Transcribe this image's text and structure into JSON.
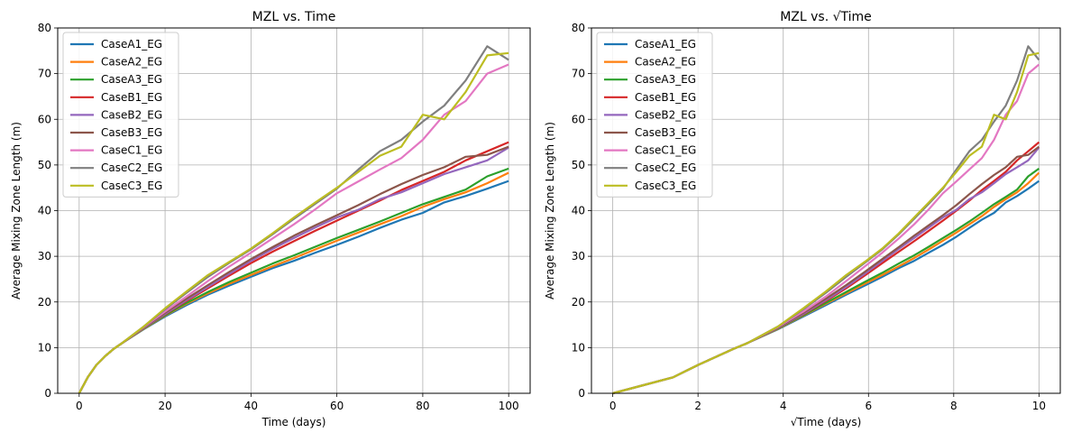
{
  "chart_data": [
    {
      "type": "line",
      "title": "MZL vs. Time",
      "xlabel": "Time (days)",
      "ylabel": "Average Mixing Zone Length (m)",
      "xlim": [
        -5,
        105
      ],
      "ylim": [
        0,
        80
      ],
      "xticks": [
        0,
        20,
        40,
        60,
        80,
        100
      ],
      "yticks": [
        0,
        10,
        20,
        30,
        40,
        50,
        60,
        70,
        80
      ],
      "grid": true,
      "legend": "upper-left",
      "x": [
        0,
        2,
        4,
        6,
        8,
        10,
        15,
        20,
        25,
        30,
        35,
        40,
        45,
        50,
        55,
        60,
        65,
        70,
        75,
        80,
        85,
        90,
        95,
        100
      ],
      "series": [
        {
          "name": "CaseA1_EG",
          "color": "#1f77b4",
          "values": [
            0,
            3.5,
            6.2,
            8.1,
            9.7,
            11.0,
            14.0,
            16.8,
            19.3,
            21.6,
            23.6,
            25.5,
            27.4,
            29.0,
            30.8,
            32.5,
            34.3,
            36.2,
            38.0,
            39.5,
            41.8,
            43.2,
            44.8,
            46.5
          ]
        },
        {
          "name": "CaseA2_EG",
          "color": "#ff7f0e",
          "values": [
            0,
            3.5,
            6.2,
            8.1,
            9.7,
            11.0,
            14.1,
            17.0,
            19.6,
            21.9,
            24.0,
            25.9,
            27.8,
            29.6,
            31.5,
            33.4,
            35.2,
            37.0,
            38.8,
            40.8,
            42.5,
            44.0,
            46.0,
            48.3
          ]
        },
        {
          "name": "CaseA3_EG",
          "color": "#2ca02c",
          "values": [
            0,
            3.5,
            6.2,
            8.1,
            9.7,
            11.0,
            14.2,
            17.1,
            19.8,
            22.2,
            24.4,
            26.4,
            28.4,
            30.2,
            32.1,
            34.0,
            35.8,
            37.6,
            39.5,
            41.4,
            43.0,
            44.6,
            47.5,
            49.2
          ]
        },
        {
          "name": "CaseB1_EG",
          "color": "#d62728",
          "values": [
            0,
            3.5,
            6.2,
            8.1,
            9.7,
            11.0,
            14.3,
            17.3,
            20.2,
            23.0,
            25.8,
            28.5,
            31.0,
            33.3,
            35.6,
            37.8,
            40.0,
            42.2,
            44.5,
            46.5,
            48.5,
            51.0,
            53.0,
            55.0
          ]
        },
        {
          "name": "CaseB2_EG",
          "color": "#9467bd",
          "values": [
            0,
            3.5,
            6.2,
            8.1,
            9.7,
            11.0,
            14.3,
            17.4,
            20.4,
            23.3,
            26.2,
            29.0,
            31.6,
            34.0,
            36.3,
            38.5,
            40.2,
            42.5,
            44.0,
            46.0,
            48.0,
            49.5,
            51.0,
            53.8
          ]
        },
        {
          "name": "CaseB3_EG",
          "color": "#8c564b",
          "values": [
            0,
            3.5,
            6.2,
            8.1,
            9.7,
            11.0,
            14.4,
            17.6,
            20.7,
            23.7,
            26.6,
            29.4,
            32.0,
            34.5,
            36.8,
            39.0,
            41.2,
            43.6,
            45.8,
            47.8,
            49.5,
            51.8,
            52.2,
            54.0
          ]
        },
        {
          "name": "CaseC1_EG",
          "color": "#e377c2",
          "values": [
            0,
            3.5,
            6.2,
            8.1,
            9.7,
            11.0,
            14.5,
            17.9,
            21.2,
            24.6,
            27.8,
            30.8,
            33.9,
            37.0,
            40.3,
            43.8,
            46.4,
            49.0,
            51.5,
            55.5,
            61.0,
            64.0,
            70.0,
            72.0
          ]
        },
        {
          "name": "CaseC2_EG",
          "color": "#7f7f7f",
          "values": [
            0,
            3.5,
            6.2,
            8.1,
            9.7,
            11.0,
            14.6,
            18.4,
            22.0,
            25.5,
            28.6,
            31.5,
            34.8,
            38.2,
            41.5,
            44.8,
            49.0,
            53.0,
            55.5,
            59.5,
            63.0,
            68.5,
            76.0,
            73.0
          ]
        },
        {
          "name": "CaseC3_EG",
          "color": "#bcbd22",
          "values": [
            0,
            3.5,
            6.2,
            8.1,
            9.7,
            11.0,
            14.6,
            18.6,
            22.3,
            25.9,
            28.8,
            31.7,
            35.0,
            38.5,
            41.8,
            45.0,
            48.5,
            52.0,
            54.0,
            61.0,
            60.0,
            66.0,
            74.0,
            74.5
          ]
        }
      ]
    },
    {
      "type": "line",
      "title": "MZL vs. √Time",
      "xlabel": "√Time (days)",
      "ylabel": "Average Mixing Zone Length (m)",
      "xlim": [
        -0.5,
        10.5
      ],
      "ylim": [
        0,
        80
      ],
      "xticks": [
        0,
        2,
        4,
        6,
        8,
        10
      ],
      "yticks": [
        0,
        10,
        20,
        30,
        40,
        50,
        60,
        70,
        80
      ],
      "grid": true,
      "legend": "upper-left",
      "x_from": "sqrt of panel 1 x"
    }
  ]
}
